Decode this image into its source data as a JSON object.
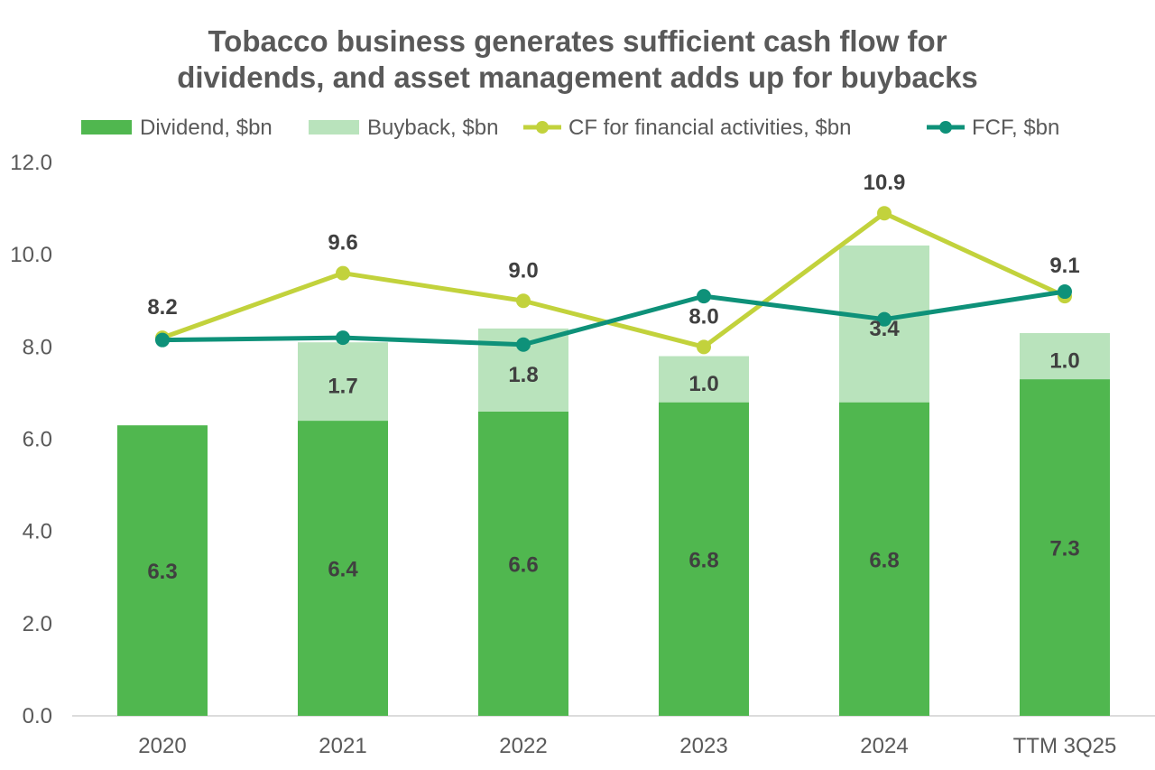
{
  "chart_data": {
    "type": "bar",
    "title_lines": [
      "Tobacco business generates sufficient cash flow for",
      "dividends, and asset management adds up for buybacks"
    ],
    "categories": [
      "2020",
      "2021",
      "2022",
      "2023",
      "2024",
      "TTM 3Q25"
    ],
    "ylim": [
      0,
      12
    ],
    "yticks": [
      "0.0",
      "2.0",
      "4.0",
      "6.0",
      "8.0",
      "10.0",
      "12.0"
    ],
    "ytick_values": [
      0,
      2,
      4,
      6,
      8,
      10,
      12
    ],
    "stacked": true,
    "series": [
      {
        "name": "Dividend, $bn",
        "kind": "bar",
        "color": "#50b74f",
        "values": [
          6.3,
          6.4,
          6.6,
          6.8,
          6.8,
          7.3
        ],
        "labels": [
          "6.3",
          "6.4",
          "6.6",
          "6.8",
          "6.8",
          "7.3"
        ]
      },
      {
        "name": "Buyback, $bn",
        "kind": "bar",
        "color": "#b9e3bc",
        "values": [
          0,
          1.7,
          1.8,
          1.0,
          3.4,
          1.0
        ],
        "labels": [
          "",
          "1.7",
          "1.8",
          "1.0",
          "3.4",
          "1.0"
        ]
      },
      {
        "name": "CF for financial activities, $bn",
        "kind": "line",
        "color": "#c2d23c",
        "values": [
          8.2,
          9.6,
          9.0,
          8.0,
          10.9,
          9.1
        ],
        "labels": [
          "8.2",
          "9.6",
          "9.0",
          "8.0",
          "10.9",
          "9.1"
        ]
      },
      {
        "name": "FCF, $bn",
        "kind": "line",
        "color": "#0e9179",
        "values": [
          8.15,
          8.2,
          8.05,
          9.1,
          8.6,
          9.2
        ],
        "labels": []
      }
    ],
    "legend_position": "top",
    "grid": false
  }
}
